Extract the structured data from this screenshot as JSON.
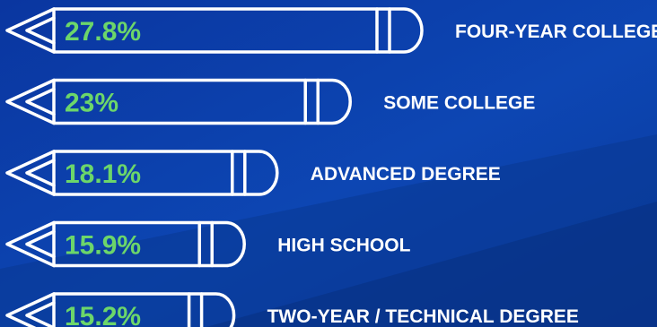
{
  "chart_data": {
    "type": "bar",
    "orientation": "horizontal",
    "categories": [
      "FOUR-YEAR COLLEGE",
      "SOME COLLEGE",
      "ADVANCED DEGREE",
      "HIGH SCHOOL",
      "TWO-YEAR / TECHNICAL DEGREE"
    ],
    "values": [
      27.8,
      23,
      18.1,
      15.9,
      15.2
    ],
    "value_labels": [
      "27.8%",
      "23%",
      "18.1%",
      "15.9%",
      "15.2%"
    ],
    "title": "",
    "xlabel": "",
    "ylabel": "",
    "grid": false,
    "legend": "none"
  },
  "colors": {
    "background": "#0b3fa6",
    "value_text": "#6cd66a",
    "outline": "#ffffff",
    "label_text": "#ffffff"
  },
  "icons": [
    "pencil-icon"
  ]
}
